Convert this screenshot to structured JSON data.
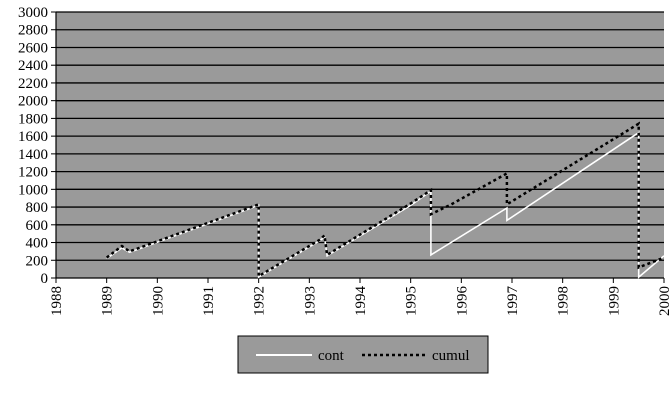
{
  "chart_data": {
    "type": "line",
    "title": "",
    "xlabel": "",
    "ylabel": "",
    "xlim": [
      1988,
      2000
    ],
    "ylim": [
      0,
      3000
    ],
    "x_ticks": [
      "1988",
      "1989",
      "1990",
      "1991",
      "1992",
      "1993",
      "1994",
      "1995",
      "1996",
      "1997",
      "1998",
      "1999",
      "2000"
    ],
    "y_ticks": [
      "0",
      "200",
      "400",
      "600",
      "800",
      "1000",
      "1200",
      "1400",
      "1600",
      "1800",
      "2000",
      "2200",
      "2400",
      "2600",
      "2800",
      "3000"
    ],
    "grid": true,
    "legend_position": "bottom-center",
    "colors": {
      "plot_background": "#9a9a9a",
      "gridline": "#000000",
      "cont": "#ffffff",
      "cumul": "#000000",
      "legend_background": "#9a9a9a"
    },
    "series": [
      {
        "name": "cont",
        "style": "solid",
        "points": [
          [
            1989.0,
            220
          ],
          [
            1989.3,
            340
          ],
          [
            1989.45,
            290
          ],
          [
            1989.6,
            320
          ],
          [
            1992.0,
            820
          ],
          [
            1992.0,
            10
          ],
          [
            1993.2,
            420
          ],
          [
            1993.3,
            460
          ],
          [
            1993.35,
            250
          ],
          [
            1995.0,
            820
          ],
          [
            1995.4,
            980
          ],
          [
            1995.4,
            260
          ],
          [
            1996.9,
            790
          ],
          [
            1996.9,
            650
          ],
          [
            1999.5,
            1640
          ],
          [
            1999.5,
            10
          ],
          [
            2000.0,
            250
          ]
        ]
      },
      {
        "name": "cumul",
        "style": "dotted",
        "points": [
          [
            1989.0,
            230
          ],
          [
            1989.3,
            360
          ],
          [
            1989.45,
            300
          ],
          [
            1989.6,
            330
          ],
          [
            1992.0,
            830
          ],
          [
            1992.0,
            20
          ],
          [
            1993.2,
            430
          ],
          [
            1993.3,
            480
          ],
          [
            1993.35,
            260
          ],
          [
            1995.0,
            840
          ],
          [
            1995.4,
            990
          ],
          [
            1995.4,
            720
          ],
          [
            1995.8,
            830
          ],
          [
            1996.9,
            1180
          ],
          [
            1996.9,
            830
          ],
          [
            1999.5,
            1740
          ],
          [
            1999.5,
            120
          ],
          [
            2000.0,
            230
          ]
        ]
      }
    ]
  }
}
